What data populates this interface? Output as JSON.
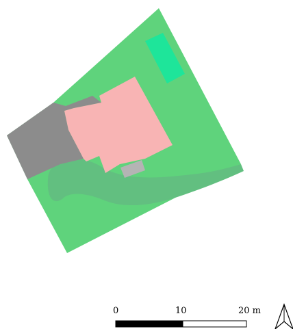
{
  "map": {
    "colors": {
      "lawn": "#5fd37c",
      "lawn_path": "#62bf80",
      "building": "#f8b4b4",
      "paved_area": "#8c8c8c",
      "small_structure": "#b4b4b4",
      "bright_green_patch": "#1ee59a",
      "scale_bar_dark": "#000000",
      "scale_bar_light": "#ffffff"
    },
    "scale_bar": {
      "labels": [
        "0",
        "10",
        "20 m"
      ],
      "segments": [
        {
          "from": 0,
          "to": 10,
          "fill": "dark"
        },
        {
          "from": 10,
          "to": 20,
          "fill": "light"
        }
      ]
    },
    "north_arrow": {
      "icon": "north-arrow-icon"
    }
  }
}
